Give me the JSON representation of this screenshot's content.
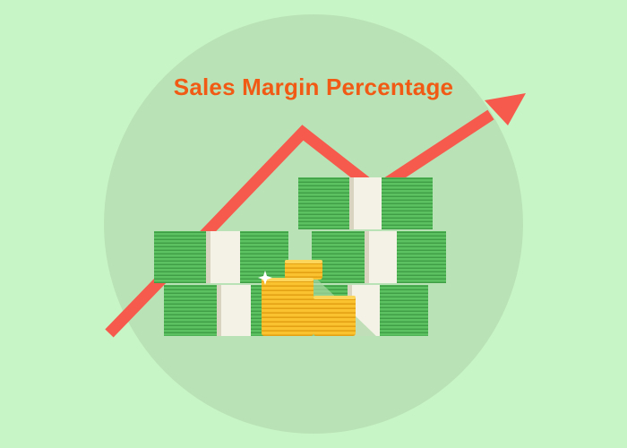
{
  "title": "Sales Margin Percentage",
  "colors": {
    "background": "#c8f5c6",
    "circle": "#b9e3b6",
    "title": "#f05a14",
    "arrow": "#f65a4c",
    "cash": "#5cc160",
    "cash_band": "#f4f2e6",
    "coin": "#f9c22e"
  },
  "illustration": {
    "icons": [
      "trend-arrow-icon",
      "cash-stack-icon",
      "coin-stack-icon",
      "sparkle-icon"
    ]
  }
}
